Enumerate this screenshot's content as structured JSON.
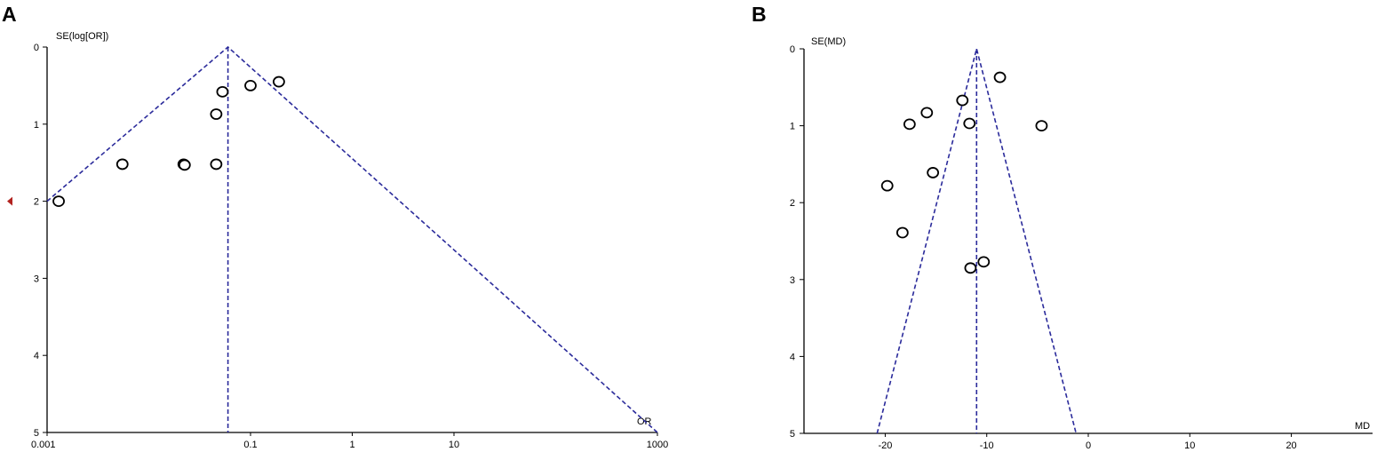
{
  "chart_data": [
    {
      "panel": "A",
      "type": "scatter",
      "xlabel": "OR",
      "ylabel": "SE(log[OR])",
      "x_scale": "log",
      "xlim": [
        0.001,
        1000
      ],
      "ylim": [
        5,
        0
      ],
      "x_ticks": [
        "0.001",
        "0.1",
        "1",
        "10",
        "1000"
      ],
      "y_ticks": [
        "0",
        "1",
        "2",
        "3",
        "4",
        "5"
      ],
      "pooled_estimate": 0.06,
      "funnel": {
        "apex": [
          0.06,
          0
        ],
        "left": [
          0.001,
          2.0
        ],
        "right": [
          1000,
          5
        ],
        "center_line": [
          [
            0.06,
            0
          ],
          [
            0.06,
            5
          ]
        ]
      },
      "points": [
        {
          "x": 0.19,
          "y": 0.45
        },
        {
          "x": 0.1,
          "y": 0.5
        },
        {
          "x": 0.053,
          "y": 0.58
        },
        {
          "x": 0.046,
          "y": 0.87
        },
        {
          "x": 0.0055,
          "y": 1.52
        },
        {
          "x": 0.022,
          "y": 1.52
        },
        {
          "x": 0.0225,
          "y": 1.53
        },
        {
          "x": 0.046,
          "y": 1.52
        },
        {
          "x": 0.0013,
          "y": 2.0
        }
      ],
      "marker": {
        "color": "#b2231f",
        "y": 2.0
      }
    },
    {
      "panel": "B",
      "type": "scatter",
      "xlabel": "MD",
      "ylabel": "SE(MD)",
      "x_scale": "linear",
      "xlim": [
        -28,
        28
      ],
      "ylim": [
        5,
        0
      ],
      "x_ticks": [
        "-20",
        "-10",
        "0",
        "10",
        "20"
      ],
      "y_ticks": [
        "0",
        "1",
        "2",
        "3",
        "4",
        "5"
      ],
      "pooled_estimate": -11,
      "funnel": {
        "apex": [
          -11,
          0
        ],
        "left": [
          -20.8,
          5
        ],
        "right": [
          -1.2,
          5
        ],
        "center_line": [
          [
            -11,
            0
          ],
          [
            -11,
            5
          ]
        ]
      },
      "points": [
        {
          "x": -8.7,
          "y": 0.37
        },
        {
          "x": -12.4,
          "y": 0.67
        },
        {
          "x": -15.9,
          "y": 0.83
        },
        {
          "x": -17.6,
          "y": 0.98
        },
        {
          "x": -11.7,
          "y": 0.97
        },
        {
          "x": -4.6,
          "y": 1.0
        },
        {
          "x": -15.3,
          "y": 1.61
        },
        {
          "x": -19.8,
          "y": 1.78
        },
        {
          "x": -18.3,
          "y": 2.39
        },
        {
          "x": -10.3,
          "y": 2.77
        },
        {
          "x": -11.6,
          "y": 2.85
        }
      ]
    }
  ]
}
